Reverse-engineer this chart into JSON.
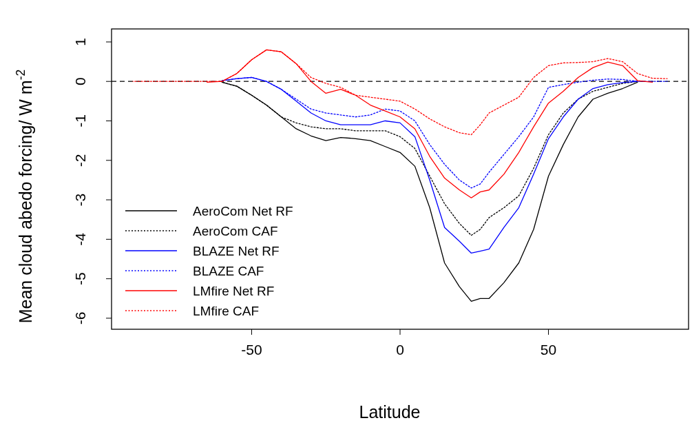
{
  "chart_data": {
    "type": "line",
    "xlabel": "Latitude",
    "ylabel": "Mean cloud abedo forcing/ W m$^{-2}$",
    "x": [
      -90,
      -80,
      -70,
      -65,
      -60,
      -55,
      -50,
      -45,
      -40,
      -35,
      -30,
      -25,
      -20,
      -15,
      -10,
      -5,
      0,
      5,
      10,
      15,
      20,
      24,
      27,
      30,
      35,
      40,
      45,
      50,
      55,
      60,
      65,
      70,
      75,
      80,
      85,
      90
    ],
    "xlim": [
      -97.2,
      97.2
    ],
    "xticks": [
      -50,
      0,
      50
    ],
    "ylim": [
      -6.28,
      1.33
    ],
    "yticks": [
      1,
      0,
      -1,
      -2,
      -3,
      -4,
      -5,
      -6
    ],
    "grid": false,
    "legend": "bottom left",
    "ref_lines": [
      {
        "axis": "y",
        "value": 0,
        "color": "#000000",
        "line_style": "dashed"
      }
    ],
    "series": [
      {
        "name": "AeroCom Net RF",
        "color": "#000000",
        "line_style": "solid",
        "values": [
          null,
          null,
          null,
          null,
          -0.02,
          -0.12,
          -0.35,
          -0.6,
          -0.9,
          -1.2,
          -1.38,
          -1.5,
          -1.42,
          -1.45,
          -1.5,
          -1.65,
          -1.8,
          -2.15,
          -3.2,
          -4.6,
          -5.2,
          -5.57,
          -5.5,
          -5.5,
          -5.1,
          -4.6,
          -3.75,
          -2.4,
          -1.6,
          -0.9,
          -0.45,
          -0.3,
          -0.18,
          -0.02,
          null,
          null
        ]
      },
      {
        "name": "AeroCom CAF",
        "color": "#000000",
        "line_style": "dotted",
        "values": [
          null,
          null,
          null,
          null,
          -0.02,
          -0.12,
          -0.35,
          -0.6,
          -0.9,
          -1.05,
          -1.15,
          -1.2,
          -1.2,
          -1.25,
          -1.25,
          -1.25,
          -1.4,
          -1.7,
          -2.4,
          -3.1,
          -3.6,
          -3.9,
          -3.75,
          -3.45,
          -3.2,
          -2.9,
          -2.2,
          -1.35,
          -0.8,
          -0.45,
          -0.25,
          -0.15,
          -0.05,
          0,
          null,
          null
        ]
      },
      {
        "name": "BLAZE Net RF",
        "color": "#0000ff",
        "line_style": "solid",
        "values": [
          null,
          null,
          null,
          null,
          0.02,
          0.07,
          0.1,
          0,
          -0.2,
          -0.5,
          -0.8,
          -1.0,
          -1.1,
          -1.1,
          -1.1,
          -1.0,
          -1.05,
          -1.4,
          -2.5,
          -3.7,
          -4.05,
          -4.35,
          -4.3,
          -4.25,
          -3.7,
          -3.2,
          -2.35,
          -1.45,
          -0.9,
          -0.45,
          -0.18,
          -0.08,
          -0.03,
          0,
          null,
          null
        ]
      },
      {
        "name": "BLAZE CAF",
        "color": "#0000ff",
        "line_style": "dotted",
        "values": [
          null,
          null,
          null,
          null,
          0.02,
          0.07,
          0.1,
          0,
          -0.2,
          -0.45,
          -0.7,
          -0.8,
          -0.85,
          -0.9,
          -0.85,
          -0.7,
          -0.75,
          -1.0,
          -1.6,
          -2.1,
          -2.5,
          -2.7,
          -2.6,
          -2.3,
          -1.85,
          -1.4,
          -0.9,
          -0.15,
          -0.08,
          -0.02,
          0.03,
          0.06,
          0.05,
          0,
          0,
          0
        ]
      },
      {
        "name": "LMfire Net RF",
        "color": "#ff0000",
        "line_style": "solid",
        "values": [
          null,
          null,
          null,
          -0.02,
          0,
          0.2,
          0.55,
          0.8,
          0.75,
          0.45,
          0,
          -0.3,
          -0.2,
          -0.35,
          -0.6,
          -0.75,
          -0.9,
          -1.2,
          -1.9,
          -2.45,
          -2.75,
          -2.95,
          -2.8,
          -2.75,
          -2.35,
          -1.8,
          -1.15,
          -0.55,
          -0.25,
          0.1,
          0.35,
          0.49,
          0.4,
          0.02,
          -0.02,
          null
        ]
      },
      {
        "name": "LMfire CAF",
        "color": "#ff0000",
        "line_style": "dotted",
        "values": [
          0,
          0,
          0,
          0,
          0,
          0.2,
          0.55,
          0.8,
          0.75,
          0.45,
          0.1,
          -0.05,
          -0.15,
          -0.35,
          -0.4,
          -0.45,
          -0.5,
          -0.7,
          -0.95,
          -1.15,
          -1.3,
          -1.35,
          -1.1,
          -0.8,
          -0.6,
          -0.4,
          0.1,
          0.4,
          0.47,
          0.48,
          0.5,
          0.58,
          0.5,
          0.2,
          0.08,
          0.07
        ]
      }
    ]
  }
}
